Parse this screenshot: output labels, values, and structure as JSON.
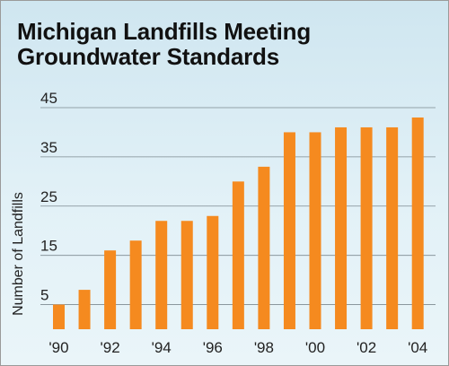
{
  "chart_data": {
    "type": "bar",
    "title": "Michigan Landfills Meeting Groundwater Standards",
    "title_lines": [
      "Michigan Landfills Meeting",
      "Groundwater Standards"
    ],
    "ylabel": "Number of Landfills",
    "xlabel": "",
    "categories": [
      "1990",
      "1991",
      "1992",
      "1993",
      "1994",
      "1995",
      "1996",
      "1997",
      "1998",
      "1999",
      "2000",
      "2001",
      "2002",
      "2003",
      "2004"
    ],
    "x_tick_labels": [
      "'90",
      "",
      "'92",
      "",
      "'94",
      "",
      "'96",
      "",
      "'98",
      "",
      "'00",
      "",
      "'02",
      "",
      "'04"
    ],
    "values": [
      5,
      8,
      16,
      18,
      22,
      22,
      23,
      30,
      33,
      40,
      40,
      41,
      41,
      41,
      43
    ],
    "y_ticks": [
      5,
      15,
      25,
      35,
      45
    ],
    "ylim": [
      0,
      45
    ],
    "grid": true,
    "colors": {
      "bar": "#f58a1f",
      "grid": "#7d8a91",
      "background": "#dcedf4"
    }
  }
}
